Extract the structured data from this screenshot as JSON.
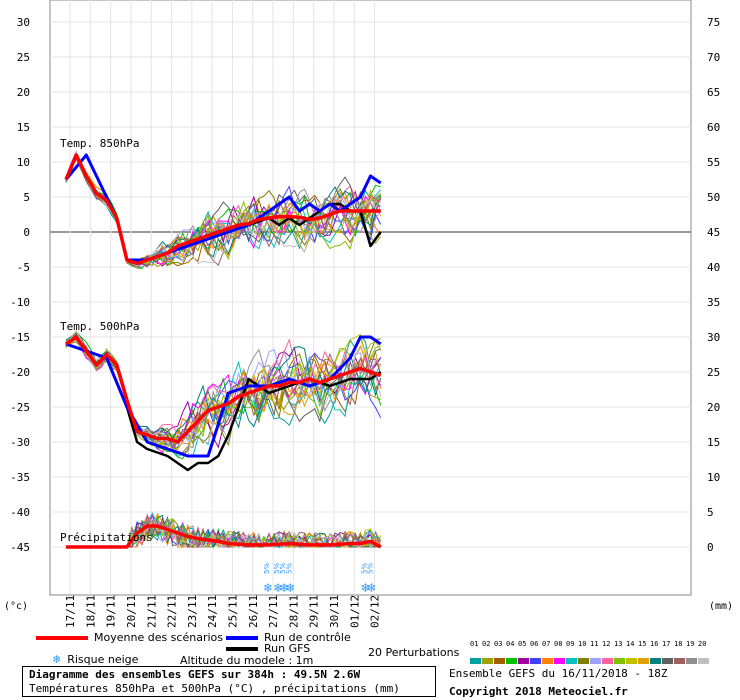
{
  "chart_data": {
    "type": "line",
    "x_ticks": [
      "17/11",
      "18/11",
      "19/11",
      "20/11",
      "21/11",
      "22/11",
      "23/11",
      "24/11",
      "25/11",
      "26/11",
      "27/11",
      "28/11",
      "29/11",
      "30/11",
      "01/12",
      "02/12"
    ],
    "left_axis": {
      "unit": "(°c)",
      "ticks": [
        30,
        25,
        20,
        15,
        10,
        5,
        0,
        -5,
        -10,
        -15,
        -20,
        -25,
        -30,
        -35,
        -40,
        -45
      ]
    },
    "right_axis": {
      "unit": "(mm)",
      "ticks": [
        75,
        70,
        65,
        60,
        55,
        50,
        45,
        40,
        35,
        30,
        25,
        20,
        15,
        10,
        5,
        0
      ]
    },
    "panel_labels": {
      "t850": "Temp. 850hPa",
      "t500": "Temp. 500hPa",
      "precip": "Précipitations"
    },
    "t850_mean": {
      "x": [
        0,
        0.5,
        1,
        1.5,
        2,
        2.5,
        3,
        3.5,
        4,
        4.5,
        5,
        5.5,
        6,
        6.5,
        7,
        7.5,
        8,
        8.5,
        9,
        9.5,
        10,
        10.5,
        11,
        11.5,
        12,
        12.5,
        13,
        13.5,
        14,
        14.5,
        15,
        15.5
      ],
      "y": [
        7.5,
        11,
        8,
        5.5,
        4.5,
        2,
        -4,
        -4.5,
        -4,
        -3.5,
        -3,
        -2,
        -1.5,
        -1,
        -0.5,
        0,
        0.5,
        1,
        1.2,
        1.8,
        2,
        2.2,
        2.2,
        2.1,
        1.8,
        2,
        2.5,
        3,
        3,
        3,
        3,
        3
      ]
    },
    "t850_control": {
      "x": [
        0,
        1,
        2,
        2.5,
        3,
        4,
        5,
        6,
        7,
        8,
        9,
        10,
        10.5,
        11,
        11.5,
        12,
        12.5,
        13,
        13.5,
        14,
        14.5,
        15,
        15.5
      ],
      "y": [
        7.5,
        11,
        5,
        2,
        -4,
        -4,
        -3,
        -2,
        -1,
        0,
        1,
        3,
        4,
        5,
        3,
        4,
        3,
        4,
        3,
        4,
        5,
        8,
        7
      ]
    },
    "t850_gfs": {
      "x": [
        0,
        1,
        2,
        2.5,
        3,
        4,
        5,
        6,
        7,
        8,
        9,
        10,
        10.5,
        11,
        11.5,
        12,
        12.5,
        13,
        13.5,
        14,
        14.5,
        15,
        15.5
      ],
      "y": [
        7.5,
        11,
        5,
        2,
        -4,
        -4,
        -3,
        -2,
        -1,
        0,
        1,
        2,
        1,
        2,
        1,
        2,
        3,
        4,
        4,
        3,
        3,
        -2,
        0
      ]
    },
    "t500_mean": {
      "x": [
        0,
        0.5,
        1,
        1.5,
        2,
        2.5,
        3,
        3.5,
        4,
        4.5,
        5,
        5.5,
        6,
        6.5,
        7,
        7.5,
        8,
        8.5,
        9,
        9.5,
        10,
        10.5,
        11,
        11.5,
        12,
        12.5,
        13,
        13.5,
        14,
        14.5,
        15,
        15.5
      ],
      "y": [
        -16,
        -15,
        -17,
        -19,
        -17.5,
        -19,
        -24,
        -28.5,
        -29,
        -29.5,
        -29.5,
        -30,
        -28.5,
        -27,
        -25.5,
        -25,
        -24.5,
        -23.5,
        -23,
        -22.5,
        -22,
        -22,
        -21.5,
        -21.5,
        -21,
        -21.5,
        -21,
        -20.5,
        -20,
        -19.5,
        -20,
        -20.5
      ]
    },
    "t500_control": {
      "x": [
        0,
        1,
        2,
        3,
        4,
        5,
        6,
        7,
        8,
        9,
        10,
        11,
        12,
        13,
        14,
        14.5,
        15,
        15.5
      ],
      "y": [
        -16,
        -17,
        -18,
        -25,
        -30,
        -31,
        -32,
        -32,
        -23,
        -22,
        -22,
        -21,
        -22,
        -21,
        -18,
        -15,
        -15,
        -16
      ]
    },
    "t500_gfs": {
      "x": [
        0,
        1,
        2,
        3,
        3.5,
        4,
        5,
        6,
        6.5,
        7,
        7.5,
        8,
        9,
        10,
        11,
        12,
        13,
        14,
        15,
        15.5
      ],
      "y": [
        -16,
        -17,
        -18,
        -25,
        -30,
        -31,
        -32,
        -34,
        -33,
        -33,
        -32,
        -29,
        -21,
        -23,
        -22,
        -21,
        -22,
        -21,
        -21,
        -20
      ]
    },
    "precip_mean": {
      "x": [
        0,
        3,
        3.5,
        4,
        4.5,
        5,
        5.5,
        6,
        6.5,
        7,
        7.5,
        8,
        9,
        10,
        11,
        12,
        13,
        14,
        14.5,
        15,
        15.5
      ],
      "y": [
        0,
        0,
        2,
        3,
        3,
        2.5,
        2,
        1.5,
        1.2,
        1,
        0.8,
        0.5,
        0.3,
        0.3,
        0.5,
        0.3,
        0.3,
        0.5,
        0.5,
        0.8,
        0
      ]
    },
    "snow_marks": [
      {
        "x": 10.0,
        "label": "5%"
      },
      {
        "x": 10.5,
        "label": "5%"
      },
      {
        "x": 10.8,
        "label": "5%"
      },
      {
        "x": 11.1,
        "label": "5%"
      },
      {
        "x": 14.8,
        "label": "5%"
      },
      {
        "x": 15.1,
        "label": "5%"
      }
    ]
  },
  "legend": {
    "mean": "Moyenne des scénarios",
    "control": "Run de contrôle",
    "gfs": "Run GFS",
    "snow": "Risque neige",
    "altitude": "Altitude du modele : 1m",
    "perturbations": "20 Perturbations",
    "pert_numbers": [
      "01",
      "02",
      "03",
      "04",
      "05",
      "06",
      "07",
      "08",
      "09",
      "10",
      "11",
      "12",
      "13",
      "14",
      "15",
      "16",
      "17",
      "18",
      "19",
      "20"
    ],
    "pert_colors": [
      "#00a0a0",
      "#a0a000",
      "#a06000",
      "#00c000",
      "#a000a0",
      "#4040ff",
      "#ff8000",
      "#ff00ff",
      "#00c0c0",
      "#808000",
      "#a0a0ff",
      "#ff60a0",
      "#80c000",
      "#c0c000",
      "#e0a000",
      "#008080",
      "#606060",
      "#a06060",
      "#909090",
      "#c0c0c0"
    ],
    "mean_color": "#ff0000",
    "control_color": "#0000ff",
    "gfs_color": "#000000"
  },
  "footer": {
    "title": "Diagramme des ensembles GEFS sur 384h : 49.5N 2.6W",
    "subtitle": "Températures 850hPa et 500hPa (°C) , précipitations (mm)",
    "run": "Ensemble GEFS du 16/11/2018 - 18Z",
    "copyright": "Copyright 2018 Meteociel.fr"
  }
}
